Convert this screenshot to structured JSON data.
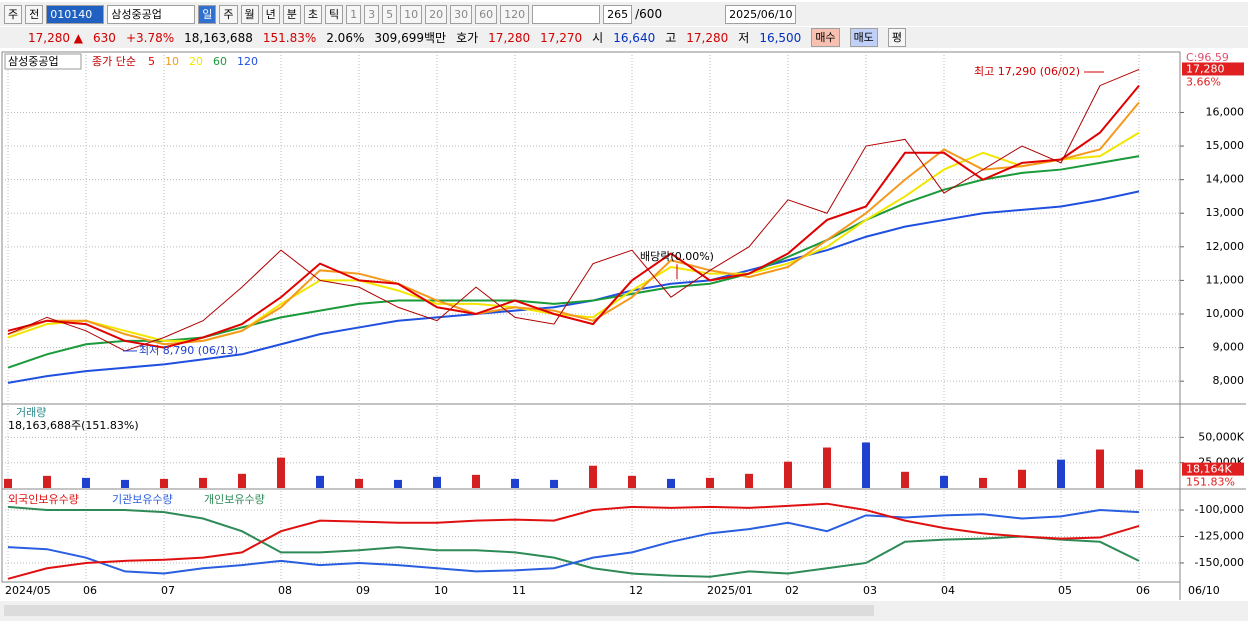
{
  "toolbar": {
    "market": "주",
    "mode": "전",
    "code": "010140",
    "name": "삼성중공업",
    "periods": [
      "일",
      "주",
      "월",
      "년",
      "분",
      "초",
      "틱"
    ],
    "intervals": [
      "1",
      "3",
      "5",
      "10",
      "20",
      "30",
      "60",
      "120"
    ],
    "count": "265",
    "max": "/600",
    "date": "2025/06/10"
  },
  "quote": {
    "price": "17,280 ▲",
    "change": "630",
    "rate": "+3.78%",
    "volume": "18,163,688",
    "volume_ratio": "151.83%",
    "turnover": "2.06%",
    "amount": "309,699백만",
    "bid_label": "호가",
    "ask": "17,280",
    "bid": "17,270",
    "open_label": "시",
    "open": "16,640",
    "high_label": "고",
    "high": "17,280",
    "low_label": "저",
    "low": "16,500",
    "buy": "매수",
    "sell": "매도",
    "avg": "평"
  },
  "chart_data": [
    {
      "type": "line",
      "title": "삼성중공업",
      "legend_title": "종가 단순",
      "close": {
        "color": "#b00000",
        "values": [
          9400,
          9900,
          9500,
          8900,
          9300,
          9800,
          10800,
          11900,
          11000,
          10800,
          10200,
          9800,
          10800,
          9900,
          9700,
          11500,
          11900,
          10500,
          11300,
          12000,
          13400,
          13000,
          15000,
          15200,
          13600,
          14300,
          15000,
          14500,
          16800,
          17280
        ]
      },
      "series": [
        {
          "name": "5",
          "color": "#e00000",
          "values": [
            9500,
            9800,
            9700,
            9200,
            9000,
            9300,
            9700,
            10500,
            11500,
            11000,
            10900,
            10200,
            10000,
            10400,
            10000,
            9700,
            11000,
            11800,
            11000,
            11200,
            11800,
            12800,
            13200,
            14800,
            14800,
            14000,
            14500,
            14600,
            15400,
            16800
          ]
        },
        {
          "name": "10",
          "color": "#f39a1e",
          "values": [
            9400,
            9800,
            9800,
            9400,
            9100,
            9200,
            9500,
            10200,
            11300,
            11200,
            10900,
            10400,
            10000,
            10200,
            10100,
            9800,
            10500,
            11600,
            11300,
            11100,
            11400,
            12200,
            13000,
            14000,
            14900,
            14300,
            14400,
            14600,
            14900,
            16300
          ]
        },
        {
          "name": "20",
          "color": "#f2e600",
          "values": [
            9300,
            9700,
            9800,
            9500,
            9200,
            9200,
            9500,
            10300,
            11000,
            11000,
            10700,
            10300,
            10300,
            10200,
            10000,
            9900,
            10700,
            11400,
            11200,
            11200,
            11500,
            12000,
            12800,
            13500,
            14300,
            14800,
            14400,
            14600,
            14700,
            15400
          ]
        },
        {
          "name": "60",
          "color": "#1a9a3a",
          "values": [
            8400,
            8800,
            9100,
            9200,
            9200,
            9300,
            9600,
            9900,
            10100,
            10300,
            10400,
            10400,
            10400,
            10400,
            10300,
            10400,
            10600,
            10800,
            10900,
            11200,
            11700,
            12200,
            12800,
            13300,
            13700,
            14000,
            14200,
            14300,
            14500,
            14700
          ]
        },
        {
          "name": "120",
          "color": "#2050e0",
          "values": [
            7950,
            8150,
            8300,
            8400,
            8500,
            8650,
            8800,
            9100,
            9400,
            9600,
            9800,
            9900,
            10000,
            10100,
            10200,
            10400,
            10700,
            10900,
            11000,
            11300,
            11600,
            11900,
            12300,
            12600,
            12800,
            13000,
            13100,
            13200,
            13400,
            13650
          ]
        }
      ],
      "ylim": [
        7350,
        17800
      ],
      "yticks": [
        {
          "value": 8000,
          "label": "8,000"
        },
        {
          "value": 9000,
          "label": "9,000"
        },
        {
          "value": 10000,
          "label": "10,000"
        },
        {
          "value": 11000,
          "label": "11,000"
        },
        {
          "value": 12000,
          "label": "12,000"
        },
        {
          "value": 13000,
          "label": "13,000"
        },
        {
          "value": 14000,
          "label": "14,000"
        },
        {
          "value": 15000,
          "label": "15,000"
        },
        {
          "value": 16000,
          "label": "16,000"
        }
      ],
      "annotations": [
        "최고 17,290 (06/02)",
        "최저 8,790 (06/13)",
        "배당락(0.00%)"
      ],
      "right_labels": [
        "C:96.59",
        "17,280",
        "3.66%"
      ]
    },
    {
      "type": "bar",
      "title": "거래량",
      "subtitle": "18,163,688주(151.83%)",
      "values": [
        9000,
        12000,
        10000,
        8000,
        9000,
        10000,
        14000,
        30000,
        12000,
        9000,
        8000,
        11000,
        13000,
        9000,
        8000,
        22000,
        12000,
        9000,
        10000,
        14000,
        26000,
        40000,
        45000,
        16000,
        12000,
        10000,
        18000,
        28000,
        38000,
        18164
      ],
      "colors": [
        "#d42020",
        "#d42020",
        "#2040d0",
        "#2040d0",
        "#d42020",
        "#d42020",
        "#d42020",
        "#d42020",
        "#2040d0",
        "#d42020",
        "#2040d0",
        "#2040d0",
        "#d42020",
        "#2040d0",
        "#2040d0",
        "#d42020",
        "#d42020",
        "#2040d0",
        "#d42020",
        "#d42020",
        "#d42020",
        "#d42020",
        "#2040d0",
        "#d42020",
        "#2040d0",
        "#d42020",
        "#d42020",
        "#2040d0",
        "#d42020",
        "#d42020"
      ],
      "ylim": [
        0,
        81000
      ],
      "yticks": [
        {
          "value": 25000,
          "label": "25,000K"
        },
        {
          "value": 50000,
          "label": "50,000K"
        }
      ],
      "last_label": "18,164K",
      "last_ratio": "151.83%"
    },
    {
      "type": "line",
      "series": [
        {
          "name": "외국인보유수량",
          "color": "#e01010",
          "values": [
            -165000,
            -155000,
            -150000,
            -148000,
            -147000,
            -145000,
            -140000,
            -120000,
            -110000,
            -111000,
            -112000,
            -112000,
            -110000,
            -109000,
            -110000,
            -100000,
            -97000,
            -98000,
            -97000,
            -98000,
            -96000,
            -94000,
            -100000,
            -110000,
            -117000,
            -122000,
            -125000,
            -127000,
            -126000,
            -115000
          ]
        },
        {
          "name": "기관보유수량",
          "color": "#2a5ee0",
          "values": [
            -135000,
            -137000,
            -145000,
            -158000,
            -160000,
            -155000,
            -152000,
            -148000,
            -152000,
            -150000,
            -152000,
            -155000,
            -158000,
            -157000,
            -155000,
            -145000,
            -140000,
            -130000,
            -122000,
            -118000,
            -112000,
            -120000,
            -105000,
            -107000,
            -105000,
            -104000,
            -108000,
            -106000,
            -100000,
            -102000
          ]
        },
        {
          "name": "개인보유수량",
          "color": "#2e8b57",
          "values": [
            -97000,
            -100000,
            -100000,
            -100000,
            -102000,
            -108000,
            -120000,
            -140000,
            -140000,
            -138000,
            -135000,
            -138000,
            -138000,
            -140000,
            -145000,
            -155000,
            -160000,
            -162000,
            -163000,
            -158000,
            -160000,
            -155000,
            -150000,
            -130000,
            -128000,
            -127000,
            -125000,
            -128000,
            -130000,
            -148000
          ]
        }
      ],
      "ylim": [
        -168000,
        -82000
      ],
      "yticks": [
        {
          "value": -100000,
          "label": "-100,000"
        },
        {
          "value": -125000,
          "label": "-125,000"
        },
        {
          "value": -150000,
          "label": "-150,000"
        }
      ],
      "categories": [
        "2024/05",
        null,
        "06",
        null,
        "07",
        null,
        null,
        "08",
        null,
        "09",
        null,
        "10",
        null,
        "11",
        null,
        null,
        "12",
        null,
        "2025/01",
        null,
        "02",
        null,
        "03",
        null,
        "04",
        null,
        null,
        "05",
        null,
        "06"
      ],
      "last_date": "06/10"
    }
  ]
}
